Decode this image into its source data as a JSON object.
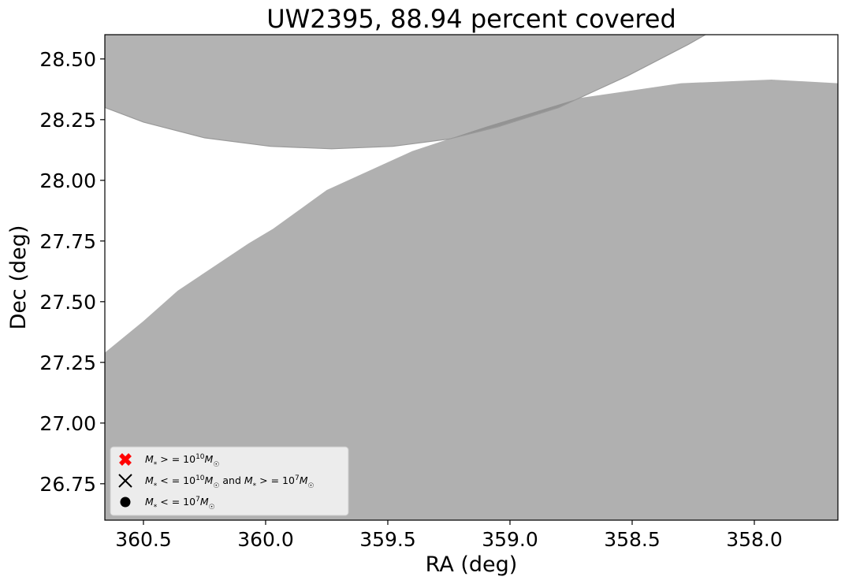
{
  "chart_data": {
    "type": "area",
    "title": "UW2395, 88.94 percent covered",
    "xlabel": "RA (deg)",
    "ylabel": "Dec (deg)",
    "xlim": [
      360.658,
      357.658
    ],
    "ylim": [
      26.6,
      28.6
    ],
    "xaxis_inverted": true,
    "xticks": [
      360.5,
      360.0,
      359.5,
      359.0,
      358.5,
      358.0
    ],
    "xtick_labels": [
      "360.5",
      "360.0",
      "359.5",
      "359.0",
      "358.5",
      "358.0"
    ],
    "yticks": [
      26.75,
      27.0,
      27.25,
      27.5,
      27.75,
      28.0,
      28.25,
      28.5
    ],
    "ytick_labels": [
      "26.75",
      "27.00",
      "27.25",
      "27.50",
      "27.75",
      "28.00",
      "28.25",
      "28.50"
    ],
    "grid": false,
    "regions": [
      {
        "fill_color": "#b0b0b0",
        "edge_color": "#999999",
        "opacity": 1.0,
        "points": [
          [
            360.658,
            28.6
          ],
          [
            357.658,
            28.6
          ],
          [
            357.658,
            26.6
          ],
          [
            360.658,
            26.6
          ]
        ]
      },
      {
        "fill_color": "#ffffff",
        "opacity": 1.0,
        "points": [
          [
            360.658,
            27.29
          ],
          [
            360.5,
            27.42
          ],
          [
            360.36,
            27.545
          ],
          [
            360.07,
            27.74
          ],
          [
            359.97,
            27.8
          ],
          [
            359.75,
            27.96
          ],
          [
            359.4,
            28.12
          ],
          [
            359.1,
            28.22
          ],
          [
            358.71,
            28.34
          ],
          [
            358.5,
            28.37
          ],
          [
            358.3,
            28.4
          ],
          [
            357.93,
            28.415
          ],
          [
            357.658,
            28.4
          ],
          [
            357.658,
            28.6
          ],
          [
            360.658,
            28.6
          ]
        ]
      },
      {
        "fill_color": "#808080",
        "edge_color": "#999999",
        "opacity": 0.6,
        "points": [
          [
            360.658,
            28.6
          ],
          [
            360.658,
            28.3
          ],
          [
            360.5,
            28.24
          ],
          [
            360.25,
            28.175
          ],
          [
            359.98,
            28.14
          ],
          [
            359.73,
            28.13
          ],
          [
            359.48,
            28.14
          ],
          [
            359.25,
            28.17
          ],
          [
            359.05,
            28.22
          ],
          [
            358.8,
            28.3
          ],
          [
            358.52,
            28.43
          ],
          [
            358.27,
            28.56
          ],
          [
            358.2,
            28.6
          ]
        ]
      }
    ],
    "legend": {
      "placement": "lower-left",
      "entries": [
        {
          "marker": "bold-x",
          "color": "#ff0000",
          "label": "M* >= 10^10 M☉"
        },
        {
          "marker": "x",
          "color": "#000000",
          "label": "M* <= 10^10 M☉ and M* >= 10^7 M☉"
        },
        {
          "marker": "circle",
          "color": "#000000",
          "label": "M* <= 10^7 M☉"
        }
      ]
    },
    "series": []
  }
}
